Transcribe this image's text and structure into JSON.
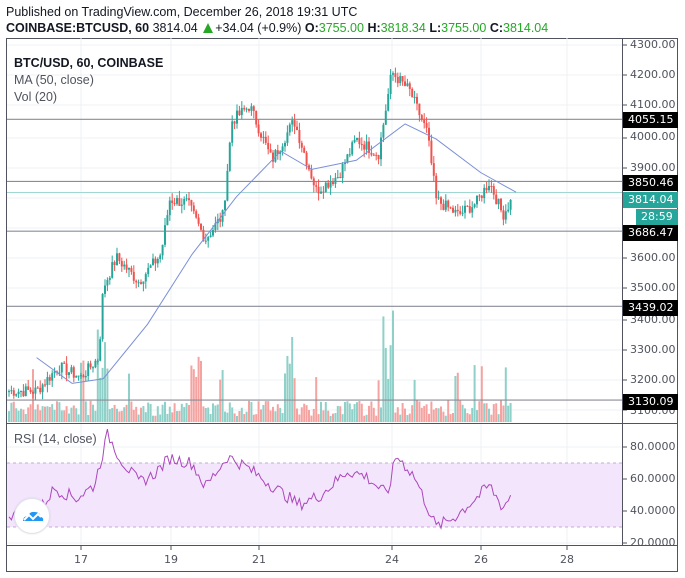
{
  "header": {
    "published": "Published on TradingView.com, December 26, 2018 19:31 UTC",
    "symbol": "COINBASE:BTCUSD, 60",
    "last": "3814.04",
    "change": "+34.04 (+0.9%)",
    "o_label": "O:",
    "o": "3755.00",
    "h_label": "H:",
    "h": "3818.34",
    "l_label": "L:",
    "l": "3755.00",
    "c_label": "C:",
    "c": "3814.04"
  },
  "legend": {
    "title": "BTC/USD, 60, COINBASE",
    "ma": "MA (50, close)",
    "vol": "Vol (20)"
  },
  "rsi": {
    "label": "RSI (14, close)"
  },
  "price_axis": {
    "ticks": [
      "4300.00",
      "4200.00",
      "4100.00",
      "4000.00",
      "3900.00",
      "3600.00",
      "3500.00",
      "3400.00",
      "3300.00",
      "3200.00",
      "3100.00"
    ]
  },
  "rsi_axis": {
    "ticks": [
      "80.0000",
      "60.0000",
      "40.0000",
      "20.0000"
    ]
  },
  "price_tags": {
    "h1": "4055.15",
    "h2": "3850.46",
    "current": "3814.04",
    "countdown": "28:59",
    "h3": "3686.47",
    "h4": "3439.02",
    "h5": "3130.09"
  },
  "time_axis": {
    "ticks": [
      "17",
      "19",
      "21",
      "24",
      "26",
      "28"
    ]
  },
  "colors": {
    "up": "#26a69a",
    "down": "#ef5350",
    "ma": "#7b8fd6",
    "rsi": "#ab47bc",
    "rsi_band": "#f3e5fc",
    "ohlc_value": "#26a826",
    "hline": "#787b86"
  },
  "chart_data": {
    "type": "candlestick",
    "title": "BTC/USD, 60, COINBASE",
    "symbol": "COINBASE:BTCUSD",
    "interval": "60",
    "ohlc_last": {
      "open": 3755.0,
      "high": 3818.34,
      "low": 3755.0,
      "close": 3814.04,
      "change": 34.04,
      "change_pct": 0.9
    },
    "x_ticks": [
      "17",
      "19",
      "21",
      "24",
      "26",
      "28"
    ],
    "ylim": [
      3080,
      4310
    ],
    "horizontal_lines": [
      4055.15,
      3850.46,
      3686.47,
      3439.02,
      3130.09
    ],
    "current_price": 3814.04,
    "approx_close_path": [
      {
        "x": "16.0",
        "close": 3160
      },
      {
        "x": "16.5",
        "close": 3240
      },
      {
        "x": "17.0",
        "close": 3205
      },
      {
        "x": "17.4",
        "close": 3270
      },
      {
        "x": "17.5",
        "close": 3500
      },
      {
        "x": "17.8",
        "close": 3600
      },
      {
        "x": "18.3",
        "close": 3520
      },
      {
        "x": "18.8",
        "close": 3610
      },
      {
        "x": "19.0",
        "close": 3790
      },
      {
        "x": "19.4",
        "close": 3780
      },
      {
        "x": "19.8",
        "close": 3660
      },
      {
        "x": "20.2",
        "close": 3740
      },
      {
        "x": "20.4",
        "close": 4050
      },
      {
        "x": "20.8",
        "close": 4100
      },
      {
        "x": "21.3",
        "close": 3920
      },
      {
        "x": "21.8",
        "close": 4050
      },
      {
        "x": "22.3",
        "close": 3820
      },
      {
        "x": "22.8",
        "close": 3870
      },
      {
        "x": "23.2",
        "close": 3990
      },
      {
        "x": "23.7",
        "close": 3940
      },
      {
        "x": "24.0",
        "close": 4210
      },
      {
        "x": "24.4",
        "close": 4150
      },
      {
        "x": "24.8",
        "close": 4010
      },
      {
        "x": "25.0",
        "close": 3790
      },
      {
        "x": "25.5",
        "close": 3740
      },
      {
        "x": "25.9",
        "close": 3780
      },
      {
        "x": "26.2",
        "close": 3850
      },
      {
        "x": "26.5",
        "close": 3740
      },
      {
        "x": "26.8",
        "close": 3814
      }
    ],
    "ma_50_approx": [
      {
        "x": "16.0",
        "value": 3270
      },
      {
        "x": "16.8",
        "value": 3185
      },
      {
        "x": "17.5",
        "value": 3200
      },
      {
        "x": "18.5",
        "value": 3380
      },
      {
        "x": "19.5",
        "value": 3610
      },
      {
        "x": "20.5",
        "value": 3800
      },
      {
        "x": "21.5",
        "value": 3950
      },
      {
        "x": "22.2",
        "value": 3890
      },
      {
        "x": "23.2",
        "value": 3920
      },
      {
        "x": "24.3",
        "value": 4040
      },
      {
        "x": "25.0",
        "value": 3990
      },
      {
        "x": "26.0",
        "value": 3880
      },
      {
        "x": "26.8",
        "value": 3815
      }
    ],
    "volume": {
      "label": "Vol (20)",
      "peaks_x": [
        "17.5",
        "19.6",
        "21.7",
        "23.9"
      ]
    },
    "rsi": {
      "label": "RSI (14, close)",
      "ylim": [
        18,
        92
      ],
      "band": [
        30,
        70
      ],
      "ticks": [
        80,
        60,
        40,
        20
      ],
      "approx": [
        {
          "x": "16.0",
          "value": 38
        },
        {
          "x": "16.4",
          "value": 54
        },
        {
          "x": "16.9",
          "value": 48
        },
        {
          "x": "17.3",
          "value": 56
        },
        {
          "x": "17.6",
          "value": 88
        },
        {
          "x": "17.9",
          "value": 72
        },
        {
          "x": "18.3",
          "value": 58
        },
        {
          "x": "18.6",
          "value": 62
        },
        {
          "x": "19.0",
          "value": 73
        },
        {
          "x": "19.5",
          "value": 70
        },
        {
          "x": "19.8",
          "value": 55
        },
        {
          "x": "20.3",
          "value": 74
        },
        {
          "x": "20.7",
          "value": 68
        },
        {
          "x": "21.3",
          "value": 56
        },
        {
          "x": "21.9",
          "value": 44
        },
        {
          "x": "22.4",
          "value": 50
        },
        {
          "x": "23.0",
          "value": 65
        },
        {
          "x": "23.4",
          "value": 62
        },
        {
          "x": "23.9",
          "value": 50
        },
        {
          "x": "24.1",
          "value": 75
        },
        {
          "x": "24.5",
          "value": 62
        },
        {
          "x": "25.0",
          "value": 30
        },
        {
          "x": "25.4",
          "value": 36
        },
        {
          "x": "25.9",
          "value": 48
        },
        {
          "x": "26.2",
          "value": 56
        },
        {
          "x": "26.5",
          "value": 42
        },
        {
          "x": "26.8",
          "value": 55
        }
      ]
    }
  }
}
